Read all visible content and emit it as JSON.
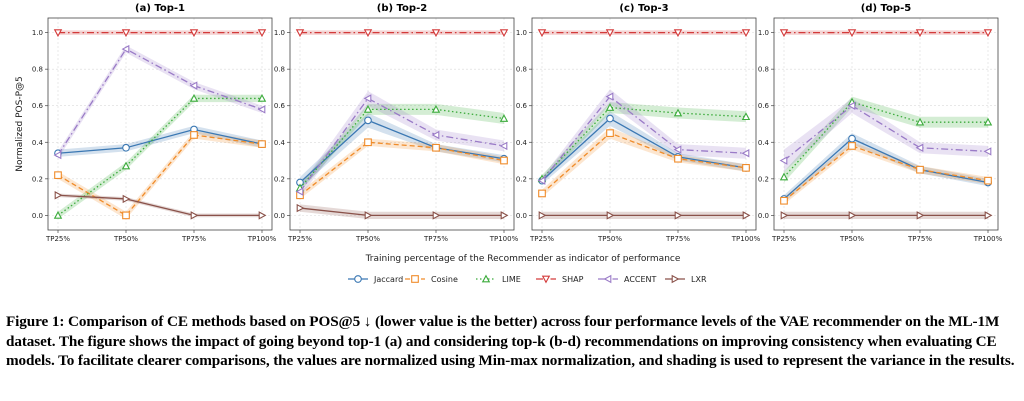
{
  "chart_data": {
    "type": "line",
    "x": [
      "TP25%",
      "TP50%",
      "TP75%",
      "TP100%"
    ],
    "ylabel": "Normalized POS-P@5",
    "xlabel": "Training percentage of the Recommender as indicator of performance",
    "ylim": [
      -0.08,
      1.08
    ],
    "yticks": [
      0.0,
      0.2,
      0.4,
      0.6,
      0.8,
      1.0
    ],
    "ytick_labels": [
      "0.0",
      "0.2",
      "0.4",
      "0.6",
      "0.8",
      "1.0"
    ],
    "grid": true,
    "legend_position": "bottom-center",
    "series_styles": [
      {
        "name": "Jaccard",
        "color": "#3b78b3",
        "marker": "circle",
        "dash": ""
      },
      {
        "name": "Cosine",
        "color": "#f08c2a",
        "marker": "square",
        "dash": "5,3"
      },
      {
        "name": "LIME",
        "color": "#3bab3b",
        "marker": "triangle-up",
        "dash": "1.5,2.5"
      },
      {
        "name": "SHAP",
        "color": "#d33a3a",
        "marker": "triangle-down",
        "dash": "7,3,1.5,3"
      },
      {
        "name": "ACCENT",
        "color": "#9a7bc7",
        "marker": "triangle-left",
        "dash": "7,3,1.5,3"
      },
      {
        "name": "LXR",
        "color": "#8a524a",
        "marker": "triangle-right",
        "dash": ""
      }
    ],
    "panels": [
      {
        "title": "(a) Top-1",
        "series": [
          {
            "name": "Jaccard",
            "values": [
              0.34,
              0.37,
              0.47,
              0.39
            ],
            "spread": [
              0.02,
              0.02,
              0.02,
              0.02
            ]
          },
          {
            "name": "Cosine",
            "values": [
              0.22,
              0.0,
              0.44,
              0.39
            ],
            "spread": [
              0.02,
              0.02,
              0.02,
              0.02
            ]
          },
          {
            "name": "LIME",
            "values": [
              0.0,
              0.27,
              0.64,
              0.64
            ],
            "spread": [
              0.02,
              0.02,
              0.02,
              0.02
            ]
          },
          {
            "name": "SHAP",
            "values": [
              1.0,
              1.0,
              1.0,
              1.0
            ],
            "spread": [
              0.012,
              0.012,
              0.012,
              0.012
            ]
          },
          {
            "name": "ACCENT",
            "values": [
              0.33,
              0.91,
              0.71,
              0.58
            ],
            "spread": [
              0.02,
              0.02,
              0.02,
              0.02
            ]
          },
          {
            "name": "LXR",
            "values": [
              0.11,
              0.09,
              0.0,
              0.0
            ],
            "spread": [
              0.01,
              0.01,
              0.01,
              0.01
            ]
          }
        ]
      },
      {
        "title": "(b) Top-2",
        "series": [
          {
            "name": "Jaccard",
            "values": [
              0.18,
              0.52,
              0.37,
              0.31
            ],
            "spread": [
              0.03,
              0.04,
              0.02,
              0.02
            ]
          },
          {
            "name": "Cosine",
            "values": [
              0.11,
              0.4,
              0.37,
              0.3
            ],
            "spread": [
              0.02,
              0.02,
              0.02,
              0.02
            ]
          },
          {
            "name": "LIME",
            "values": [
              0.15,
              0.58,
              0.58,
              0.53
            ],
            "spread": [
              0.02,
              0.03,
              0.03,
              0.03
            ]
          },
          {
            "name": "SHAP",
            "values": [
              1.0,
              1.0,
              1.0,
              1.0
            ],
            "spread": [
              0.012,
              0.012,
              0.012,
              0.012
            ]
          },
          {
            "name": "ACCENT",
            "values": [
              0.13,
              0.64,
              0.44,
              0.38
            ],
            "spread": [
              0.03,
              0.04,
              0.03,
              0.03
            ]
          },
          {
            "name": "LXR",
            "values": [
              0.04,
              0.0,
              0.0,
              0.0
            ],
            "spread": [
              0.02,
              0.02,
              0.02,
              0.02
            ]
          }
        ]
      },
      {
        "title": "(c) Top-3",
        "series": [
          {
            "name": "Jaccard",
            "values": [
              0.19,
              0.53,
              0.32,
              0.26
            ],
            "spread": [
              0.02,
              0.04,
              0.02,
              0.02
            ]
          },
          {
            "name": "Cosine",
            "values": [
              0.12,
              0.45,
              0.31,
              0.26
            ],
            "spread": [
              0.02,
              0.03,
              0.02,
              0.02
            ]
          },
          {
            "name": "LIME",
            "values": [
              0.2,
              0.59,
              0.56,
              0.54
            ],
            "spread": [
              0.02,
              0.03,
              0.03,
              0.03
            ]
          },
          {
            "name": "SHAP",
            "values": [
              1.0,
              1.0,
              1.0,
              1.0
            ],
            "spread": [
              0.012,
              0.012,
              0.012,
              0.012
            ]
          },
          {
            "name": "ACCENT",
            "values": [
              0.19,
              0.65,
              0.36,
              0.34
            ],
            "spread": [
              0.02,
              0.04,
              0.03,
              0.03
            ]
          },
          {
            "name": "LXR",
            "values": [
              0.0,
              0.0,
              0.0,
              0.0
            ],
            "spread": [
              0.02,
              0.02,
              0.02,
              0.02
            ]
          }
        ]
      },
      {
        "title": "(d) Top-5",
        "series": [
          {
            "name": "Jaccard",
            "values": [
              0.09,
              0.42,
              0.25,
              0.18
            ],
            "spread": [
              0.02,
              0.03,
              0.02,
              0.02
            ]
          },
          {
            "name": "Cosine",
            "values": [
              0.08,
              0.38,
              0.25,
              0.19
            ],
            "spread": [
              0.02,
              0.02,
              0.02,
              0.02
            ]
          },
          {
            "name": "LIME",
            "values": [
              0.21,
              0.62,
              0.51,
              0.51
            ],
            "spread": [
              0.03,
              0.03,
              0.03,
              0.03
            ]
          },
          {
            "name": "SHAP",
            "values": [
              1.0,
              1.0,
              1.0,
              1.0
            ],
            "spread": [
              0.012,
              0.012,
              0.012,
              0.012
            ]
          },
          {
            "name": "ACCENT",
            "values": [
              0.3,
              0.6,
              0.37,
              0.35
            ],
            "spread": [
              0.06,
              0.04,
              0.03,
              0.03
            ]
          },
          {
            "name": "LXR",
            "values": [
              0.0,
              0.0,
              0.0,
              0.0
            ],
            "spread": [
              0.02,
              0.02,
              0.02,
              0.02
            ]
          }
        ]
      }
    ]
  },
  "caption": {
    "text": "Figure 1: Comparison of CE methods based on POS@5 ↓ (lower value is the better) across four performance levels of the VAE recommender on the ML-1M dataset. The figure shows the impact of going beyond top-1 (a) and considering top-k (b-d) recommendations on improving consistency when evaluating CE models. To facilitate clearer comparisons, the values are normalized using Min-max normalization, and shading is used to represent the variance in the results."
  }
}
